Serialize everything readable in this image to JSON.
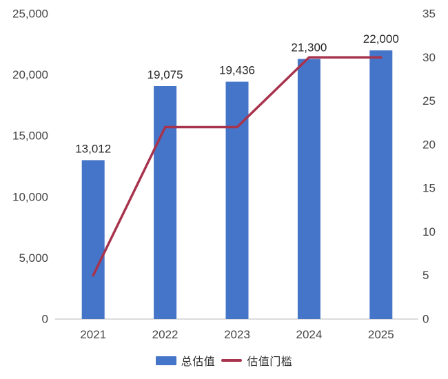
{
  "chart_data": {
    "type": "combo",
    "title": "",
    "xlabel": "",
    "ylabel_left": "",
    "ylabel_right": "",
    "grid": false,
    "legend_position": "bottom",
    "categories": [
      "2021",
      "2022",
      "2023",
      "2024",
      "2025"
    ],
    "series": [
      {
        "name": "总估值",
        "type": "bar",
        "axis": "left",
        "color": "#4575C8",
        "values": [
          13012,
          19075,
          19436,
          21300,
          22000
        ],
        "labels": [
          "13,012",
          "19,075",
          "19,436",
          "21,300",
          "22,000"
        ]
      },
      {
        "name": "估值门槛",
        "type": "line",
        "axis": "right",
        "color": "#A8334C",
        "values": [
          5,
          22,
          22,
          30,
          30
        ]
      }
    ],
    "left_axis": {
      "min": 0,
      "max": 25000,
      "step": 5000,
      "tick_labels": [
        "0",
        "5,000",
        "10,000",
        "15,000",
        "20,000",
        "25,000"
      ]
    },
    "right_axis": {
      "min": 0,
      "max": 35,
      "step": 5,
      "tick_labels": [
        "0",
        "5",
        "10",
        "15",
        "20",
        "25",
        "30",
        "35"
      ]
    },
    "colors": {
      "bar": "#4575C8",
      "line": "#A8334C",
      "axis_line": "#dcdcdc",
      "tick_text": "#454545",
      "data_label_text": "#262626",
      "background": "#ffffff"
    }
  }
}
